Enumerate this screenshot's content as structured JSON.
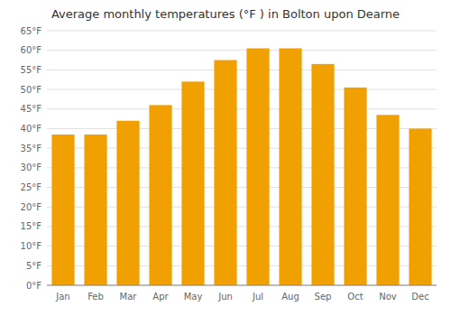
{
  "chart_data": {
    "type": "bar",
    "title": "Average monthly temperatures (°F ) in Bolton upon Dearne",
    "categories": [
      "Jan",
      "Feb",
      "Mar",
      "Apr",
      "May",
      "Jun",
      "Jul",
      "Aug",
      "Sep",
      "Oct",
      "Nov",
      "Dec"
    ],
    "values": [
      38.5,
      38.5,
      42.0,
      46.0,
      52.0,
      57.5,
      60.5,
      60.5,
      56.5,
      50.5,
      43.5,
      40.0
    ],
    "color": "#F0A000",
    "ylim": [
      0,
      65
    ],
    "yticks": [
      {
        "value": 0,
        "label": "0°F"
      },
      {
        "value": 5,
        "label": "5°F"
      },
      {
        "value": 10,
        "label": "10°F"
      },
      {
        "value": 15,
        "label": "15°F"
      },
      {
        "value": 20,
        "label": "20°F"
      },
      {
        "value": 25,
        "label": "25°F"
      },
      {
        "value": 30,
        "label": "30°F"
      },
      {
        "value": 35,
        "label": "35°F"
      },
      {
        "value": 40,
        "label": "40°F"
      },
      {
        "value": 45,
        "label": "45°F"
      },
      {
        "value": 50,
        "label": "50°F"
      },
      {
        "value": 55,
        "label": "55°F"
      },
      {
        "value": 60,
        "label": "60°F"
      },
      {
        "value": 65,
        "label": "65°F"
      }
    ],
    "grid": true
  }
}
